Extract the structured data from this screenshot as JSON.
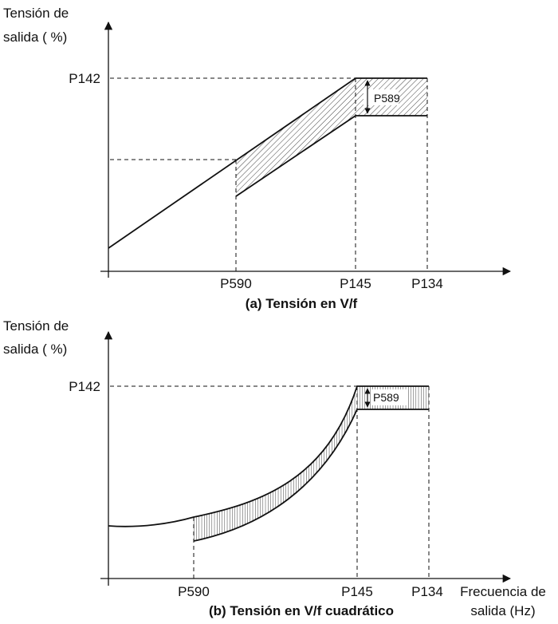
{
  "colors": {
    "ink": "#111111",
    "background": "#ffffff"
  },
  "panel_a": {
    "y_axis_label_line1": "Tensión de",
    "y_axis_label_line2": "salida ( %)",
    "y_tick": "P142",
    "x_ticks": [
      "P590",
      "P145",
      "P134"
    ],
    "boost_label": "P589",
    "caption": "(a) Tensión en V/f"
  },
  "panel_b": {
    "y_axis_label_line1": "Tensión de",
    "y_axis_label_line2": "salida ( %)",
    "y_tick": "P142",
    "x_ticks": [
      "P590",
      "P145",
      "P134"
    ],
    "boost_label": "P589",
    "x_axis_label_line1": "Frecuencia de",
    "x_axis_label_line2": "salida (Hz)",
    "caption": "(b) Tensión en V/f cuadrático"
  }
}
